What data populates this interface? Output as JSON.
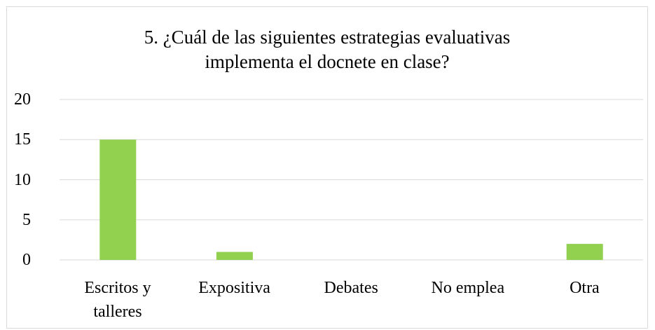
{
  "chart_data": {
    "type": "bar",
    "title": "5. ¿Cuál de las siguientes estrategias evaluativas implementa el docnete en clase?",
    "categories": [
      "Escritos y talleres",
      "Expositiva",
      "Debates",
      "No emplea",
      "Otra"
    ],
    "values": [
      15,
      1,
      0,
      0,
      2
    ],
    "color": "#92d050",
    "ylim": [
      0,
      20
    ],
    "yticks": [
      0,
      5,
      10,
      15,
      20
    ],
    "grid": true
  }
}
